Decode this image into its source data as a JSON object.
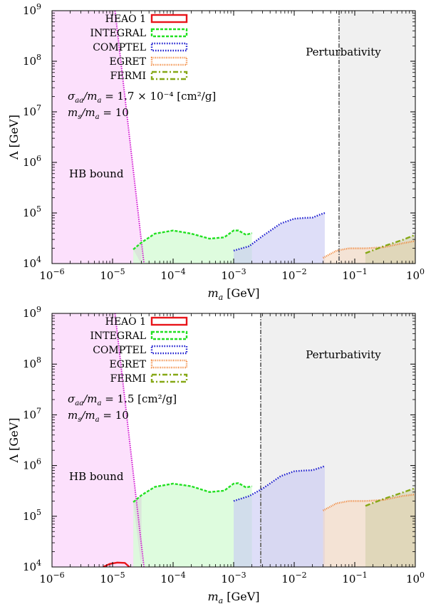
{
  "chart_data": [
    {
      "type": "area",
      "xscale": "log",
      "yscale": "log",
      "xlabel": "m_a [GeV]",
      "ylabel": "Λ [GeV]",
      "xlim": [
        1e-06,
        1
      ],
      "ylim": [
        10000,
        1000000000
      ],
      "x_ticks": [
        {
          "base": "10",
          "exp": "−6"
        },
        {
          "base": "10",
          "exp": "−5"
        },
        {
          "base": "10",
          "exp": "−4"
        },
        {
          "base": "10",
          "exp": "−3"
        },
        {
          "base": "10",
          "exp": "−2"
        },
        {
          "base": "10",
          "exp": "−1"
        },
        {
          "base": "10",
          "exp": "0"
        }
      ],
      "y_ticks": [
        {
          "base": "10",
          "exp": "4"
        },
        {
          "base": "10",
          "exp": "5"
        },
        {
          "base": "10",
          "exp": "6"
        },
        {
          "base": "10",
          "exp": "7"
        },
        {
          "base": "10",
          "exp": "8"
        },
        {
          "base": "10",
          "exp": "9"
        }
      ],
      "legend": {
        "placement": "top-left",
        "entries": [
          {
            "label": "HEAO 1",
            "color": "#e8141a",
            "style": "solid"
          },
          {
            "label": "INTEGRAL",
            "color": "#22e022",
            "style": "dashed"
          },
          {
            "label": "COMPTEL",
            "color": "#1c1ccf",
            "style": "dotted"
          },
          {
            "label": "EGRET",
            "color": "#f08030",
            "style": "dotted-fine"
          },
          {
            "label": "FERMI",
            "color": "#86a816",
            "style": "dashdot"
          }
        ]
      },
      "annotation_lines": [
        {
          "lhs": "σ_aa/m_a",
          "rhs": "1.7 × 10⁻⁴ [cm²/g]"
        },
        {
          "lhs": "m_s/m_a",
          "rhs": "10"
        }
      ],
      "hb_label": "HB bound",
      "perturbativity_label": "Perturbativity",
      "perturbativity_x": 0.055,
      "hb_line": {
        "x_top": 1.1e-05,
        "x_bottom": 3.3e-05
      },
      "series": [
        {
          "name": "HEAO 1",
          "x": [],
          "y": []
        },
        {
          "name": "INTEGRAL",
          "x": [
            2.2e-05,
            3e-05,
            5e-05,
            0.0001,
            0.0002,
            0.0004,
            0.0007,
            0.001,
            0.0012,
            0.0016,
            0.002
          ],
          "y": [
            19000,
            26000,
            39000,
            45000,
            39000,
            31000,
            33000,
            45000,
            45000,
            37000,
            40000
          ]
        },
        {
          "name": "COMPTEL",
          "x": [
            0.001,
            0.0018,
            0.003,
            0.006,
            0.01,
            0.015,
            0.02,
            0.028,
            0.032
          ],
          "y": [
            18000,
            22000,
            35000,
            62000,
            77000,
            80000,
            81000,
            95000,
            100000
          ]
        },
        {
          "name": "EGRET",
          "x": [
            0.03,
            0.05,
            0.08,
            0.15,
            0.3,
            0.6,
            1.0
          ],
          "y": [
            13000,
            18000,
            20000,
            20000,
            21000,
            25000,
            28000
          ]
        },
        {
          "name": "FERMI",
          "x": [
            0.15,
            0.3,
            0.6,
            1.0
          ],
          "y": [
            16000,
            22000,
            29000,
            37000
          ]
        }
      ]
    },
    {
      "type": "area",
      "xscale": "log",
      "yscale": "log",
      "xlabel": "m_a [GeV]",
      "ylabel": "Λ [GeV]",
      "xlim": [
        1e-06,
        1
      ],
      "ylim": [
        10000,
        1000000000
      ],
      "x_ticks": [
        {
          "base": "10",
          "exp": "−6"
        },
        {
          "base": "10",
          "exp": "−5"
        },
        {
          "base": "10",
          "exp": "−4"
        },
        {
          "base": "10",
          "exp": "−3"
        },
        {
          "base": "10",
          "exp": "−2"
        },
        {
          "base": "10",
          "exp": "−1"
        },
        {
          "base": "10",
          "exp": "0"
        }
      ],
      "y_ticks": [
        {
          "base": "10",
          "exp": "4"
        },
        {
          "base": "10",
          "exp": "5"
        },
        {
          "base": "10",
          "exp": "6"
        },
        {
          "base": "10",
          "exp": "7"
        },
        {
          "base": "10",
          "exp": "8"
        },
        {
          "base": "10",
          "exp": "9"
        }
      ],
      "legend": {
        "placement": "top-left",
        "entries": [
          {
            "label": "HEAO 1",
            "color": "#e8141a",
            "style": "solid"
          },
          {
            "label": "INTEGRAL",
            "color": "#22e022",
            "style": "dashed"
          },
          {
            "label": "COMPTEL",
            "color": "#1c1ccf",
            "style": "dotted"
          },
          {
            "label": "EGRET",
            "color": "#f08030",
            "style": "dotted-fine"
          },
          {
            "label": "FERMI",
            "color": "#86a816",
            "style": "dashdot"
          }
        ]
      },
      "annotation_lines": [
        {
          "lhs": "σ_aa/m_a",
          "rhs": "1.5 [cm²/g]"
        },
        {
          "lhs": "m_s/m_a",
          "rhs": "10"
        }
      ],
      "hb_label": "HB bound",
      "perturbativity_label": "Perturbativity",
      "perturbativity_x": 0.0028,
      "hb_line": {
        "x_top": 1.1e-05,
        "x_bottom": 3.3e-05
      },
      "series": [
        {
          "name": "HEAO 1",
          "x": [
            7e-06,
            9e-06,
            1.2e-05,
            1.6e-05,
            1.9e-05
          ],
          "y": [
            10000,
            11500,
            12200,
            12000,
            10000
          ]
        },
        {
          "name": "INTEGRAL",
          "x": [
            2.2e-05,
            3e-05,
            5e-05,
            0.0001,
            0.0002,
            0.0004,
            0.0007,
            0.001,
            0.0012,
            0.0016,
            0.002
          ],
          "y": [
            190000,
            260000,
            380000,
            440000,
            390000,
            300000,
            320000,
            440000,
            450000,
            370000,
            390000
          ]
        },
        {
          "name": "COMPTEL",
          "x": [
            0.001,
            0.0018,
            0.003,
            0.006,
            0.01,
            0.015,
            0.02,
            0.028,
            0.032
          ],
          "y": [
            200000,
            250000,
            350000,
            620000,
            770000,
            800000,
            810000,
            920000,
            980000
          ]
        },
        {
          "name": "EGRET",
          "x": [
            0.03,
            0.05,
            0.08,
            0.15,
            0.3,
            0.6,
            1.0
          ],
          "y": [
            130000,
            180000,
            200000,
            200000,
            210000,
            250000,
            270000
          ]
        },
        {
          "name": "FERMI",
          "x": [
            0.15,
            0.3,
            0.6,
            1.0
          ],
          "y": [
            160000,
            220000,
            290000,
            360000
          ]
        }
      ]
    }
  ],
  "colors": {
    "hb_fill": "#fce0fc",
    "hb_line": "#d21ad2",
    "perturbativity_fill": "#f0f0f0",
    "perturbativity_line": "#777777",
    "gap_fill": "#dcdcdc"
  }
}
